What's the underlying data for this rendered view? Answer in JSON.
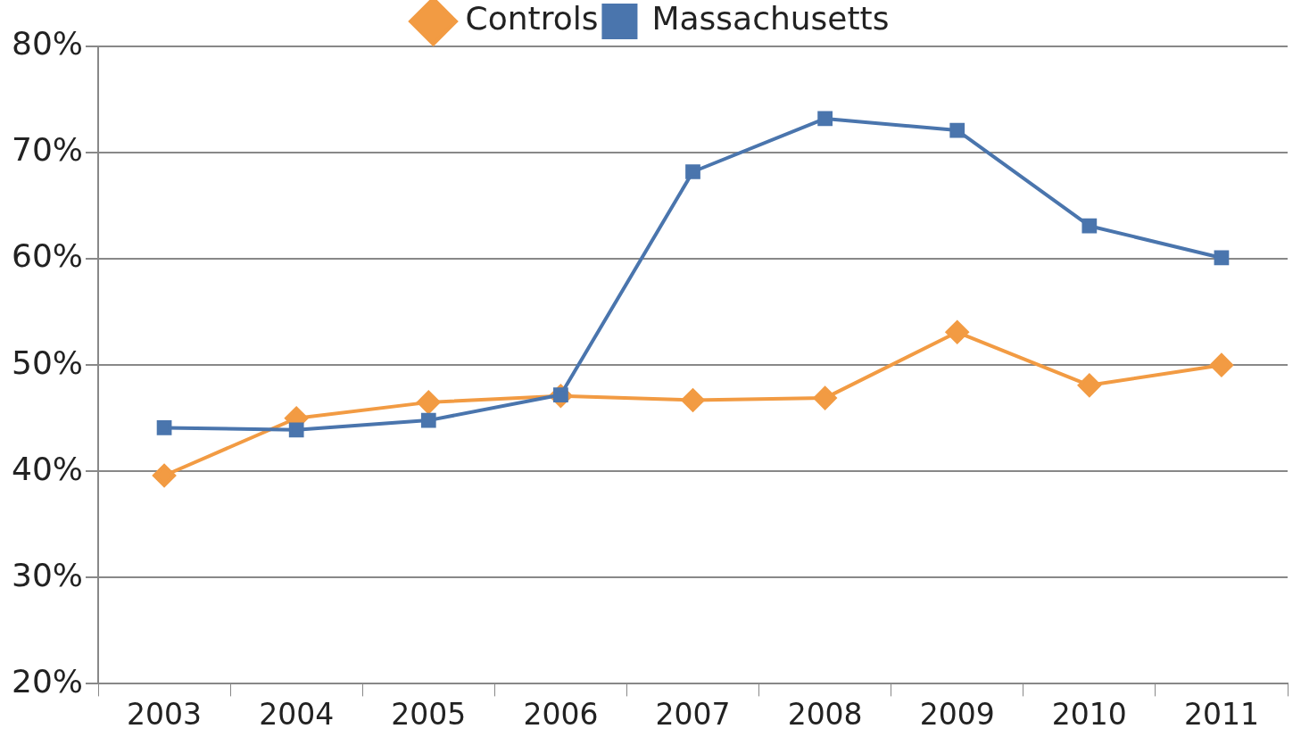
{
  "chart_data": {
    "type": "line",
    "categories": [
      "2003",
      "2004",
      "2005",
      "2006",
      "2007",
      "2008",
      "2009",
      "2010",
      "2011"
    ],
    "series": [
      {
        "name": "Controls",
        "color": "#f29b43",
        "marker": "diamond",
        "values": [
          39.6,
          45.0,
          46.5,
          47.1,
          46.7,
          46.9,
          53.1,
          48.1,
          50.0
        ]
      },
      {
        "name": "Massachusetts",
        "color": "#4a75ad",
        "marker": "square",
        "values": [
          44.1,
          43.9,
          44.8,
          47.2,
          68.2,
          73.2,
          72.1,
          63.1,
          60.1
        ]
      }
    ],
    "ylim": [
      20,
      80
    ],
    "yticks": [
      {
        "value": 20,
        "label": "20%"
      },
      {
        "value": 30,
        "label": "30%"
      },
      {
        "value": 40,
        "label": "40%"
      },
      {
        "value": 50,
        "label": "50%"
      },
      {
        "value": 60,
        "label": "60%"
      },
      {
        "value": 70,
        "label": "70%"
      },
      {
        "value": 80,
        "label": "80%"
      }
    ],
    "grid": "y",
    "legend": "top",
    "line_style": "solid"
  }
}
